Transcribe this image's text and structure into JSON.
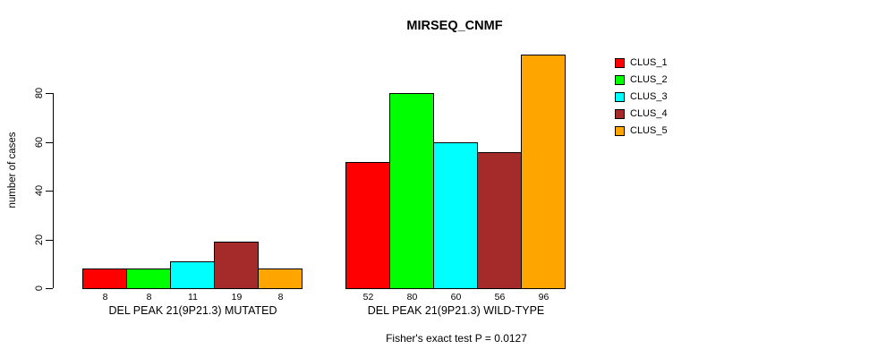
{
  "title": "MIRSEQ_CNMF",
  "y_axis": {
    "label": "number of cases",
    "ticks": [
      0,
      20,
      40,
      60,
      80
    ]
  },
  "footer": "Fisher's exact test P = 0.0127",
  "legend": {
    "entries": [
      {
        "label": "CLUS_1",
        "color": "#FF0000"
      },
      {
        "label": "CLUS_2",
        "color": "#00FF00"
      },
      {
        "label": "CLUS_3",
        "color": "#00FFFF"
      },
      {
        "label": "CLUS_4",
        "color": "#A52A2A"
      },
      {
        "label": "CLUS_5",
        "color": "#FFA500"
      }
    ]
  },
  "chart_data": {
    "type": "bar",
    "title": "MIRSEQ_CNMF",
    "ylabel": "number of cases",
    "xlabel": "",
    "ylim": [
      0,
      96
    ],
    "yticks": [
      0,
      20,
      40,
      60,
      80
    ],
    "grid": false,
    "legend_position": "top-right",
    "bar_value_labels_shown": true,
    "annotation": "Fisher's exact test P = 0.0127",
    "categories": [
      "DEL PEAK 21(9P21.3) MUTATED",
      "DEL PEAK 21(9P21.3) WILD-TYPE"
    ],
    "series": [
      {
        "name": "CLUS_1",
        "color": "#FF0000",
        "values": [
          8,
          52
        ]
      },
      {
        "name": "CLUS_2",
        "color": "#00FF00",
        "values": [
          8,
          80
        ]
      },
      {
        "name": "CLUS_3",
        "color": "#00FFFF",
        "values": [
          11,
          60
        ]
      },
      {
        "name": "CLUS_4",
        "color": "#A52A2A",
        "values": [
          19,
          56
        ]
      },
      {
        "name": "CLUS_5",
        "color": "#FFA500",
        "values": [
          8,
          96
        ]
      }
    ]
  }
}
